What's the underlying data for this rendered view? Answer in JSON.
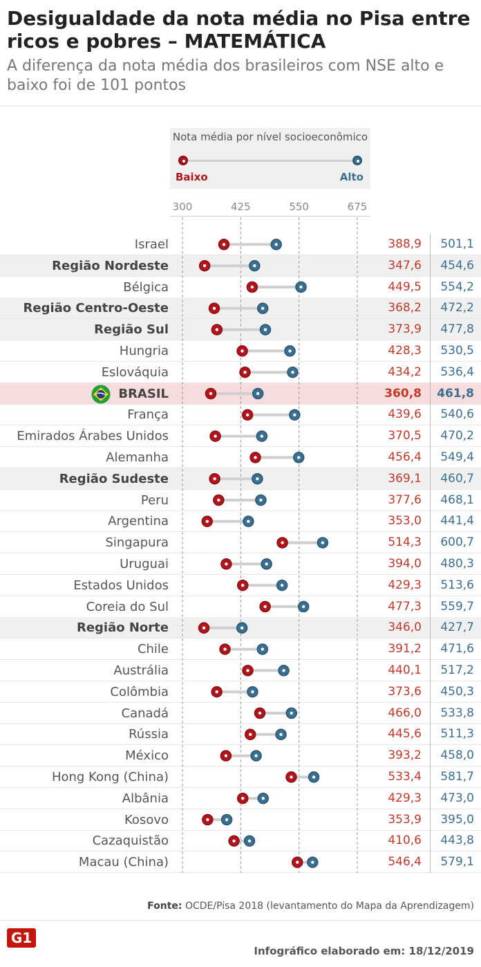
{
  "title": "Desigualdade da nota média no Pisa entre ricos e pobres – MATEMÁTICA",
  "subtitle": "A diferença da nota média dos brasileiros com NSE alto e baixo foi de 101 pontos",
  "legend": {
    "title": "Nota média por nível socioeconômico",
    "low_label": "Baixo",
    "high_label": "Alto"
  },
  "colors": {
    "low": "#b0151d",
    "high": "#3b6f8f",
    "region_bg": "#f0f0f0",
    "brasil_bg": "#f6dcdc"
  },
  "flag_icon": "brazil-flag-icon",
  "logo_text": "G1",
  "source": {
    "label": "Fonte:",
    "text": "OCDE/Pisa 2018 (levantamento do Mapa da Aprendizagem)"
  },
  "credit": "Infográfico elaborado em: 18/12/2019",
  "chart_data": {
    "type": "dumbbell",
    "x_ticks": [
      300,
      425,
      550,
      675
    ],
    "x_range": [
      300,
      675
    ],
    "grid": "vertical dashed",
    "series": [
      {
        "name": "Baixo"
      },
      {
        "name": "Alto"
      }
    ],
    "rows": [
      {
        "label": "Israel",
        "low": 388.9,
        "high": 501.1,
        "low_text": "388,9",
        "high_text": "501,1",
        "kind": "country"
      },
      {
        "label": "Região Nordeste",
        "low": 347.6,
        "high": 454.6,
        "low_text": "347,6",
        "high_text": "454,6",
        "kind": "region"
      },
      {
        "label": "Bélgica",
        "low": 449.5,
        "high": 554.2,
        "low_text": "449,5",
        "high_text": "554,2",
        "kind": "country"
      },
      {
        "label": "Região Centro-Oeste",
        "low": 368.2,
        "high": 472.2,
        "low_text": "368,2",
        "high_text": "472,2",
        "kind": "region"
      },
      {
        "label": "Região Sul",
        "low": 373.9,
        "high": 477.8,
        "low_text": "373,9",
        "high_text": "477,8",
        "kind": "region"
      },
      {
        "label": "Hungria",
        "low": 428.3,
        "high": 530.5,
        "low_text": "428,3",
        "high_text": "530,5",
        "kind": "country"
      },
      {
        "label": "Eslováquia",
        "low": 434.2,
        "high": 536.4,
        "low_text": "434,2",
        "high_text": "536,4",
        "kind": "country"
      },
      {
        "label": "BRASIL",
        "low": 360.8,
        "high": 461.8,
        "low_text": "360,8",
        "high_text": "461,8",
        "kind": "brasil"
      },
      {
        "label": "França",
        "low": 439.6,
        "high": 540.6,
        "low_text": "439,6",
        "high_text": "540,6",
        "kind": "country"
      },
      {
        "label": "Emirados Árabes Unidos",
        "low": 370.5,
        "high": 470.2,
        "low_text": "370,5",
        "high_text": "470,2",
        "kind": "country"
      },
      {
        "label": "Alemanha",
        "low": 456.4,
        "high": 549.4,
        "low_text": "456,4",
        "high_text": "549,4",
        "kind": "country"
      },
      {
        "label": "Região Sudeste",
        "low": 369.1,
        "high": 460.7,
        "low_text": "369,1",
        "high_text": "460,7",
        "kind": "region"
      },
      {
        "label": "Peru",
        "low": 377.6,
        "high": 468.1,
        "low_text": "377,6",
        "high_text": "468,1",
        "kind": "country"
      },
      {
        "label": "Argentina",
        "low": 353.0,
        "high": 441.4,
        "low_text": "353,0",
        "high_text": "441,4",
        "kind": "country"
      },
      {
        "label": "Singapura",
        "low": 514.3,
        "high": 600.7,
        "low_text": "514,3",
        "high_text": "600,7",
        "kind": "country"
      },
      {
        "label": "Uruguai",
        "low": 394.0,
        "high": 480.3,
        "low_text": "394,0",
        "high_text": "480,3",
        "kind": "country"
      },
      {
        "label": "Estados Unidos",
        "low": 429.3,
        "high": 513.6,
        "low_text": "429,3",
        "high_text": "513,6",
        "kind": "country"
      },
      {
        "label": "Coreia do Sul",
        "low": 477.3,
        "high": 559.7,
        "low_text": "477,3",
        "high_text": "559,7",
        "kind": "country"
      },
      {
        "label": "Região Norte",
        "low": 346.0,
        "high": 427.7,
        "low_text": "346,0",
        "high_text": "427,7",
        "kind": "region"
      },
      {
        "label": "Chile",
        "low": 391.2,
        "high": 471.6,
        "low_text": "391,2",
        "high_text": "471,6",
        "kind": "country"
      },
      {
        "label": "Austrália",
        "low": 440.1,
        "high": 517.2,
        "low_text": "440,1",
        "high_text": "517,2",
        "kind": "country"
      },
      {
        "label": "Colômbia",
        "low": 373.6,
        "high": 450.3,
        "low_text": "373,6",
        "high_text": "450,3",
        "kind": "country"
      },
      {
        "label": "Canadá",
        "low": 466.0,
        "high": 533.8,
        "low_text": "466,0",
        "high_text": "533,8",
        "kind": "country"
      },
      {
        "label": "Rússia",
        "low": 445.6,
        "high": 511.3,
        "low_text": "445,6",
        "high_text": "511,3",
        "kind": "country"
      },
      {
        "label": "México",
        "low": 393.2,
        "high": 458.0,
        "low_text": "393,2",
        "high_text": "458,0",
        "kind": "country"
      },
      {
        "label": "Hong Kong (China)",
        "low": 533.4,
        "high": 581.7,
        "low_text": "533,4",
        "high_text": "581,7",
        "kind": "country"
      },
      {
        "label": "Albânia",
        "low": 429.3,
        "high": 473.0,
        "low_text": "429,3",
        "high_text": "473,0",
        "kind": "country"
      },
      {
        "label": "Kosovo",
        "low": 353.9,
        "high": 395.0,
        "low_text": "353,9",
        "high_text": "395,0",
        "kind": "country"
      },
      {
        "label": "Cazaquistão",
        "low": 410.6,
        "high": 443.8,
        "low_text": "410,6",
        "high_text": "443,8",
        "kind": "country"
      },
      {
        "label": "Macau (China)",
        "low": 546.4,
        "high": 579.1,
        "low_text": "546,4",
        "high_text": "579,1",
        "kind": "country"
      }
    ]
  }
}
